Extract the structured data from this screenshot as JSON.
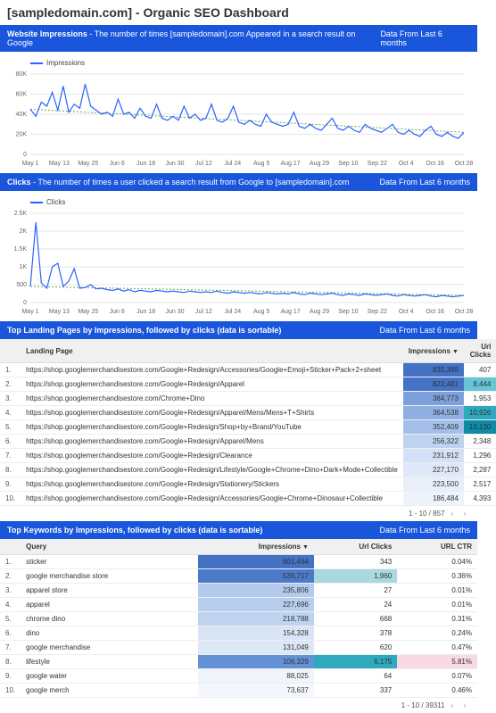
{
  "page": {
    "title": "[sampledomain.com]  - Organic SEO Dashboard"
  },
  "date_range_label": "Data From Last 6 months",
  "x_dates": [
    "May 1",
    "May 13",
    "May 25",
    "Jun 6",
    "Jun 18",
    "Jun 30",
    "Jul 12",
    "Jul 24",
    "Aug 5",
    "Aug 17",
    "Aug 29",
    "Sep 10",
    "Sep 22",
    "Oct 4",
    "Oct 16",
    "Oct 28"
  ],
  "impressions_chart": {
    "header_title": "Website Impressions",
    "header_desc": " - The number of times [sampledomain].com Appeared in a search result on Google",
    "legend_label": "Impressions",
    "ylim": [
      0,
      80000
    ],
    "yticks": [
      "0",
      "20K",
      "40K",
      "60K",
      "80K"
    ],
    "series_color": "#2962ff",
    "trend_color": "#6aa84f",
    "grid_color": "#e6e6e6",
    "values": [
      45000,
      38000,
      52000,
      48000,
      62000,
      44000,
      68000,
      42000,
      50000,
      46000,
      70000,
      48000,
      44000,
      40000,
      42000,
      38000,
      55000,
      40000,
      42000,
      36000,
      46000,
      38000,
      36000,
      50000,
      36000,
      34000,
      38000,
      34000,
      48000,
      36000,
      40000,
      34000,
      36000,
      50000,
      34000,
      32000,
      36000,
      48000,
      32000,
      30000,
      34000,
      30000,
      28000,
      40000,
      32000,
      30000,
      28000,
      30000,
      42000,
      28000,
      26000,
      30000,
      26000,
      24000,
      30000,
      36000,
      26000,
      24000,
      28000,
      24000,
      22000,
      30000,
      26000,
      24000,
      22000,
      26000,
      30000,
      22000,
      20000,
      24000,
      20000,
      18000,
      24000,
      28000,
      20000,
      18000,
      22000,
      18000,
      16000,
      22000
    ]
  },
  "clicks_chart": {
    "header_title": "Clicks",
    "header_desc": " - The number of times a user clicked a search result from Google to [sampledomain].com",
    "legend_label": "Clicks",
    "ylim": [
      0,
      2500
    ],
    "yticks": [
      "0",
      "500",
      "1K",
      "1.5K",
      "2K",
      "2.5K"
    ],
    "series_color": "#2962ff",
    "trend_color": "#6aa84f",
    "grid_color": "#e6e6e6",
    "values": [
      450,
      2250,
      550,
      400,
      1000,
      1100,
      450,
      600,
      950,
      400,
      420,
      500,
      380,
      400,
      360,
      340,
      380,
      320,
      360,
      300,
      340,
      320,
      300,
      340,
      320,
      300,
      320,
      300,
      280,
      320,
      300,
      280,
      300,
      280,
      320,
      280,
      260,
      300,
      280,
      260,
      280,
      260,
      240,
      280,
      260,
      240,
      260,
      240,
      280,
      240,
      220,
      260,
      240,
      220,
      240,
      260,
      220,
      200,
      240,
      220,
      200,
      240,
      220,
      200,
      220,
      240,
      200,
      180,
      220,
      200,
      180,
      200,
      220,
      180,
      160,
      200,
      180,
      160,
      180,
      200
    ]
  },
  "landing_table": {
    "header_title": "Top Landing Pages by Impressions, followed by clicks (data is sortable)",
    "columns": {
      "page": "Landing Page",
      "impressions": "Impressions",
      "clicks": "Url Clicks"
    },
    "heat_impr": [
      "#4472c4",
      "#4472c4",
      "#7da0dd",
      "#8fb0e3",
      "#a4c0ea",
      "#bed3f0",
      "#d3e0f5",
      "#dfe8f8",
      "#e8eefa",
      "#eff3fc"
    ],
    "heat_clicks": [
      "#ffffff",
      "#67c6d6",
      "#ffffff",
      "#2fa9bf",
      "#0e8ba6",
      "#ffffff",
      "#ffffff",
      "#ffffff",
      "#ffffff",
      "#ffffff"
    ],
    "rows": [
      {
        "rank": "1.",
        "url": "https://shop.googlemerchandisestore.com/Google+Redesign/Accessories/Google+Emoji+Sticker+Pack+2+sheet",
        "impr": "835,388",
        "clicks": "407"
      },
      {
        "rank": "2.",
        "url": "https://shop.googlemerchandisestore.com/Google+Redesign/Apparel",
        "impr": "822,481",
        "clicks": "8,444"
      },
      {
        "rank": "3.",
        "url": "https://shop.googlemerchandisestore.com/Chrome+Dino",
        "impr": "384,773",
        "clicks": "1,953"
      },
      {
        "rank": "4.",
        "url": "https://shop.googlemerchandisestore.com/Google+Redesign/Apparel/Mens/Mens+T+Shirts",
        "impr": "364,538",
        "clicks": "10,926"
      },
      {
        "rank": "5.",
        "url": "https://shop.googlemerchandisestore.com/Google+Redesign/Shop+by+Brand/YouTube",
        "impr": "352,409",
        "clicks": "13,130"
      },
      {
        "rank": "6.",
        "url": "https://shop.googlemerchandisestore.com/Google+Redesign/Apparel/Mens",
        "impr": "256,322",
        "clicks": "2,348"
      },
      {
        "rank": "7.",
        "url": "https://shop.googlemerchandisestore.com/Google+Redesign/Clearance",
        "impr": "231,912",
        "clicks": "1,296"
      },
      {
        "rank": "8.",
        "url": "https://shop.googlemerchandisestore.com/Google+Redesign/Lifestyle/Google+Chrome+Dino+Dark+Mode+Collectible",
        "impr": "227,170",
        "clicks": "2,287"
      },
      {
        "rank": "9.",
        "url": "https://shop.googlemerchandisestore.com/Google+Redesign/Stationery/Stickers",
        "impr": "223,500",
        "clicks": "2,517"
      },
      {
        "rank": "10.",
        "url": "https://shop.googlemerchandisestore.com/Google+Redesign/Accessories/Google+Chrome+Dinosaur+Collectible",
        "impr": "186,484",
        "clicks": "4,393"
      }
    ],
    "pagination": "1 - 10 / 857"
  },
  "keywords_table": {
    "header_title": "Top Keywords by Impressions, followed by clicks (data is sortable)",
    "columns": {
      "query": "Query",
      "impressions": "Impressions",
      "clicks": "Url Clicks",
      "ctr": "URL CTR"
    },
    "heat_impr": [
      "#4472c4",
      "#4c7ac9",
      "#b4cbee",
      "#b8ceef",
      "#bed3f0",
      "#d9e5f6",
      "#dde8f7",
      "#6492d7",
      "#f0f5fb",
      "#f4f8fc"
    ],
    "heat_clicks": [
      "#ffffff",
      "#a9d8e0",
      "#ffffff",
      "#ffffff",
      "#ffffff",
      "#ffffff",
      "#ffffff",
      "#2fa9bf",
      "#ffffff",
      "#ffffff"
    ],
    "heat_ctr": [
      "#ffffff",
      "#ffffff",
      "#ffffff",
      "#ffffff",
      "#ffffff",
      "#ffffff",
      "#ffffff",
      "#f9d9e4",
      "#ffffff",
      "#ffffff"
    ],
    "rows": [
      {
        "rank": "1.",
        "query": "sticker",
        "impr": "801,494",
        "clicks": "343",
        "ctr": "0.04%"
      },
      {
        "rank": "2.",
        "query": "google merchandise store",
        "impr": "539,717",
        "clicks": "1,960",
        "ctr": "0.36%"
      },
      {
        "rank": "3.",
        "query": "apparel store",
        "impr": "235,806",
        "clicks": "27",
        "ctr": "0.01%"
      },
      {
        "rank": "4.",
        "query": "apparel",
        "impr": "227,696",
        "clicks": "24",
        "ctr": "0.01%"
      },
      {
        "rank": "5.",
        "query": "chrome dino",
        "impr": "218,788",
        "clicks": "668",
        "ctr": "0.31%"
      },
      {
        "rank": "6.",
        "query": "dino",
        "impr": "154,328",
        "clicks": "378",
        "ctr": "0.24%"
      },
      {
        "rank": "7.",
        "query": "google merchandise",
        "impr": "131,049",
        "clicks": "620",
        "ctr": "0.47%"
      },
      {
        "rank": "8.",
        "query": "lifestyle",
        "impr": "106,329",
        "clicks": "6,175",
        "ctr": "5.81%"
      },
      {
        "rank": "9.",
        "query": "google water",
        "impr": "88,025",
        "clicks": "64",
        "ctr": "0.07%"
      },
      {
        "rank": "10.",
        "query": "google merch",
        "impr": "73,637",
        "clicks": "337",
        "ctr": "0.46%"
      }
    ],
    "pagination": "1 - 10 / 39311"
  }
}
